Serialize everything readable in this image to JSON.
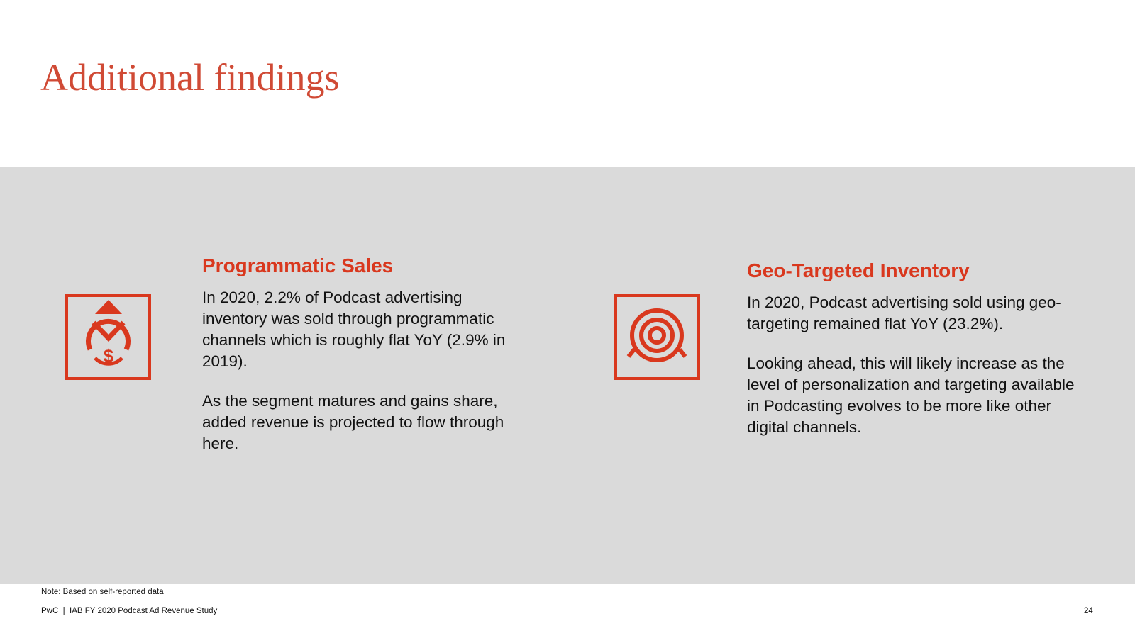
{
  "header": {
    "title": "Additional findings"
  },
  "sections": [
    {
      "heading": "Programmatic Sales",
      "paragraphs": [
        "In 2020, 2.2% of Podcast advertising inventory was sold through programmatic channels which is roughly flat YoY (2.9% in 2019).",
        "As the segment matures and gains share, added revenue is projected to flow through here."
      ]
    },
    {
      "heading": "Geo-Targeted Inventory",
      "paragraphs": [
        "In 2020, Podcast advertising sold using geo-targeting remained flat YoY (23.2%).",
        "Looking ahead, this will likely increase as the level of personalization and targeting available in Podcasting evolves to be more like other digital channels."
      ]
    }
  ],
  "footer": {
    "note": "Note: Based on self-reported data",
    "source": "PwC  |  IAB FY 2020 Podcast Ad Revenue Study",
    "page": "24"
  }
}
